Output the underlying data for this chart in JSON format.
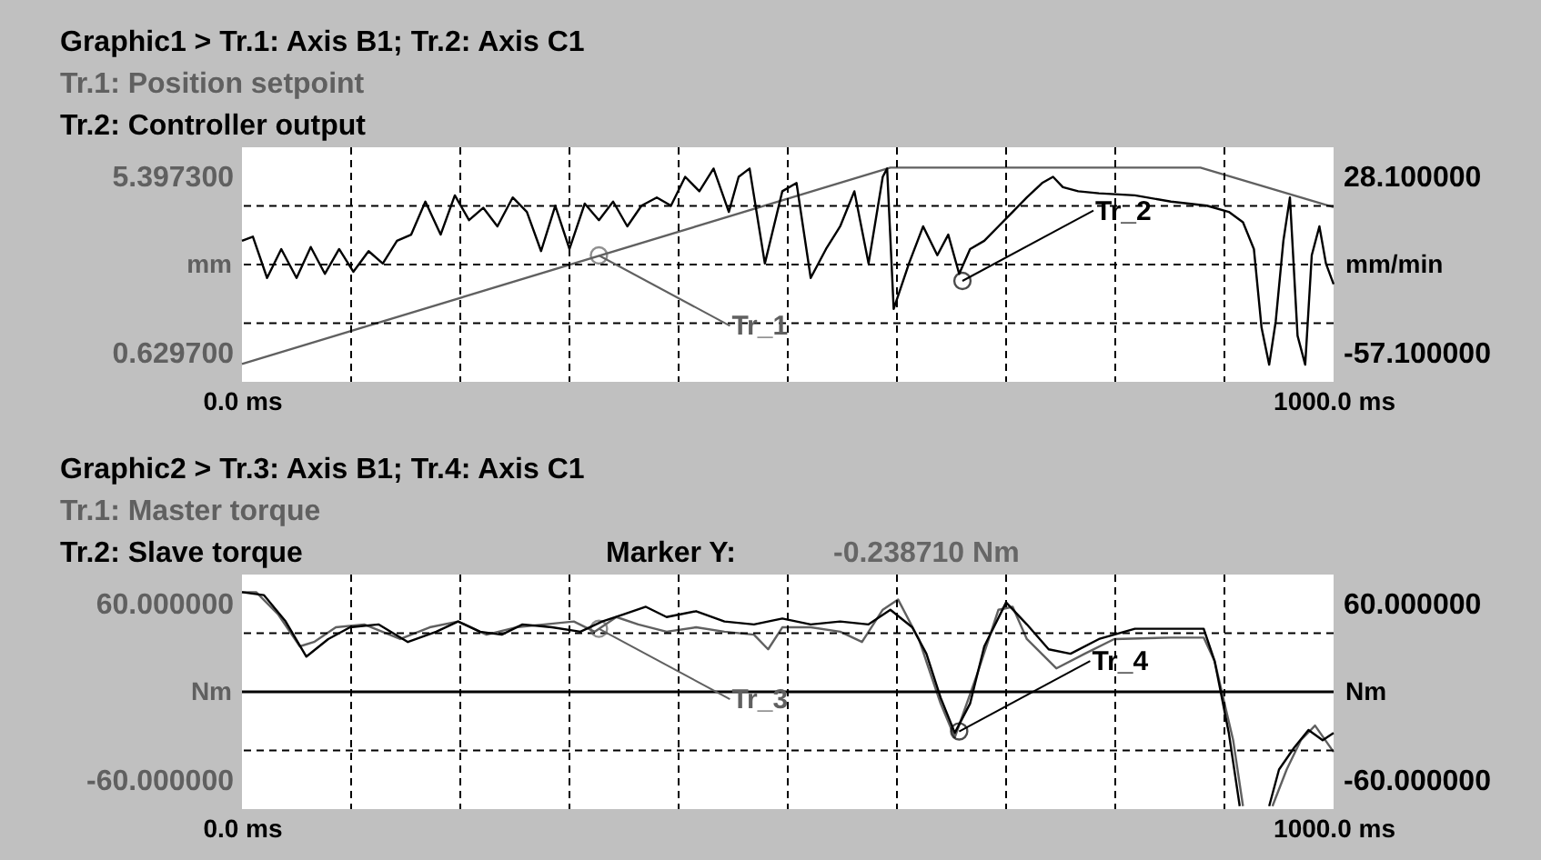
{
  "chart_data": [
    {
      "type": "line",
      "title": "Graphic1 > Tr.1: Axis B1; Tr.2: Axis C1",
      "ylabel": "mm",
      "y2label": "mm/min",
      "annotations": [
        "Tr.1: Position setpoint",
        "Tr.2: Controller output",
        {
          "text": "Tr_1",
          "x": 327,
          "y": 3.26
        },
        {
          "text": "Tr_2",
          "x": 660,
          "y": 2.57
        }
      ],
      "xlim": [
        0,
        1000
      ],
      "xticks": [
        {
          "value": 0,
          "label": "0.0 ms"
        },
        {
          "value": 100,
          "label": null
        },
        {
          "value": 200,
          "label": null
        },
        {
          "value": 300,
          "label": null
        },
        {
          "value": 400,
          "label": null
        },
        {
          "value": 500,
          "label": null
        },
        {
          "value": 600,
          "label": null
        },
        {
          "value": 700,
          "label": null
        },
        {
          "value": 800,
          "label": null
        },
        {
          "value": 900,
          "label": null
        },
        {
          "value": 1000,
          "label": "1000.0 ms"
        }
      ],
      "ylim": [
        -0.1649,
        6.1919
      ],
      "yticks": [
        {
          "value": 0.6297,
          "label": "0.629700"
        },
        {
          "value": 1.4243,
          "label": null
        },
        {
          "value": 3.0135,
          "label": null
        },
        {
          "value": 4.6027,
          "label": null
        },
        {
          "value": 5.3973,
          "label": "5.397300"
        }
      ],
      "y2lim": [
        -71.3,
        42.3
      ],
      "y2ticks": [
        {
          "value": -57.1,
          "label": "-57.100000"
        },
        {
          "value": 28.1,
          "label": "28.100000"
        }
      ],
      "grid": true,
      "series": [
        {
          "color": "#606060",
          "x": [
            0,
            594,
            878,
            1000
          ],
          "values": [
            0.32,
            5.64,
            5.64,
            4.57
          ]
        },
        {
          "color": "#000000",
          "axis": "y2",
          "x": [
            0,
            10,
            23,
            36,
            50,
            63,
            76,
            89,
            102,
            116,
            129,
            142,
            155,
            168,
            182,
            195,
            208,
            221,
            234,
            248,
            261,
            274,
            287,
            300,
            314,
            327,
            340,
            353,
            366,
            380,
            393,
            406,
            419,
            432,
            446,
            455,
            465,
            479,
            495,
            508,
            521,
            535,
            548,
            561,
            574,
            587,
            591,
            597,
            611,
            624,
            637,
            647,
            657,
            667,
            680,
            693,
            706,
            719,
            733,
            743,
            752,
            766,
            785,
            818,
            851,
            884,
            904,
            917,
            927,
            934,
            941,
            947,
            954,
            960,
            967,
            974,
            980,
            987,
            993,
            1000
          ],
          "values": [
            -3,
            -1,
            -21,
            -7,
            -21,
            -6,
            -19,
            -7,
            -18,
            -8,
            -14,
            -3,
            0,
            16,
            0,
            19,
            7,
            13,
            4,
            18,
            11,
            -8,
            14,
            -7,
            15,
            7,
            16,
            4,
            14,
            18,
            14,
            28,
            21,
            32,
            11,
            28,
            32,
            -14,
            21,
            25,
            -21,
            -7,
            4,
            21,
            -14,
            28,
            32,
            -36,
            -14,
            4,
            -10,
            0,
            -19,
            -7,
            -3,
            4,
            11,
            18,
            25,
            28,
            23,
            21,
            20,
            19,
            16,
            14,
            11,
            6,
            -7,
            -45,
            -63,
            -42,
            -3,
            18,
            -49,
            -63,
            -10,
            4,
            -14,
            -24
          ]
        }
      ]
    },
    {
      "type": "line",
      "title": "Graphic2 > Tr.3: Axis B1; Tr.4: Axis C1",
      "ylabel": "Nm",
      "y2label": "Nm",
      "annotations": [
        "Tr.1: Master torque",
        "Tr.2: Slave torque",
        "Marker Y:",
        "-0.238710 Nm",
        {
          "text": "Tr_3",
          "x": 327,
          "y": 43
        },
        {
          "text": "Tr_4",
          "x": 657,
          "y": -27
        }
      ],
      "xlim": [
        0,
        1000
      ],
      "xticks": [
        {
          "value": 0,
          "label": "0.0 ms"
        },
        {
          "value": 100,
          "label": null
        },
        {
          "value": 200,
          "label": null
        },
        {
          "value": 300,
          "label": null
        },
        {
          "value": 400,
          "label": null
        },
        {
          "value": 500,
          "label": null
        },
        {
          "value": 600,
          "label": null
        },
        {
          "value": 700,
          "label": null
        },
        {
          "value": 800,
          "label": null
        },
        {
          "value": 900,
          "label": null
        },
        {
          "value": 1000,
          "label": "1000.0 ms"
        }
      ],
      "ylim": [
        -80,
        80
      ],
      "yticks": [
        {
          "value": -60,
          "label": "-60.000000"
        },
        {
          "value": -40,
          "label": null
        },
        {
          "value": 0,
          "label": null
        },
        {
          "value": 40,
          "label": null
        },
        {
          "value": 60,
          "label": "60.000000"
        }
      ],
      "y2lim": [
        -80,
        80
      ],
      "y2ticks": [
        {
          "value": -60,
          "label": "-60.000000"
        },
        {
          "value": 60,
          "label": "60.000000"
        }
      ],
      "grid": true,
      "ref_lines": [
        {
          "axis": "y",
          "value": 0,
          "color": "#000000"
        }
      ],
      "series": [
        {
          "color": "#606060",
          "x": [
            0,
            13,
            33,
            53,
            66,
            86,
            112,
            145,
            172,
            198,
            224,
            251,
            277,
            304,
            323,
            343,
            363,
            389,
            416,
            442,
            469,
            482,
            495,
            521,
            548,
            568,
            587,
            601,
            620,
            640,
            653,
            673,
            693,
            706,
            719,
            746,
            772,
            799,
            851,
            881,
            891,
            908,
            917,
            931,
            944,
            957,
            970,
            983,
            1000
          ],
          "values": [
            68,
            68,
            53,
            31,
            34,
            44,
            46,
            36,
            44,
            48,
            39,
            44,
            46,
            48,
            41,
            51,
            46,
            41,
            44,
            41,
            39,
            29,
            44,
            44,
            41,
            34,
            56,
            63,
            36,
            -8,
            -31,
            11,
            56,
            58,
            36,
            16,
            26,
            36,
            37,
            37,
            21,
            -33,
            -78,
            null,
            -78,
            -53,
            -33,
            -23,
            -41
          ]
        },
        {
          "color": "#000000",
          "axis": "y2",
          "x": [
            0,
            20,
            40,
            59,
            79,
            99,
            125,
            152,
            178,
            198,
            218,
            238,
            257,
            284,
            310,
            330,
            350,
            370,
            389,
            416,
            442,
            469,
            495,
            521,
            548,
            574,
            594,
            614,
            627,
            640,
            653,
            667,
            680,
            700,
            719,
            739,
            759,
            785,
            818,
            851,
            881,
            891,
            904,
            914,
            927,
            941,
            950,
            964,
            977,
            990,
            1000
          ],
          "values": [
            68,
            66,
            48,
            24,
            36,
            44,
            46,
            34,
            41,
            48,
            41,
            39,
            46,
            44,
            41,
            48,
            53,
            58,
            51,
            55,
            48,
            46,
            50,
            46,
            48,
            46,
            56,
            44,
            26,
            -4,
            -28,
            -8,
            31,
            61,
            46,
            29,
            26,
            36,
            43,
            43,
            43,
            21,
            -28,
            -78,
            null,
            -78,
            -53,
            -38,
            -26,
            -33,
            -28
          ]
        }
      ]
    }
  ]
}
